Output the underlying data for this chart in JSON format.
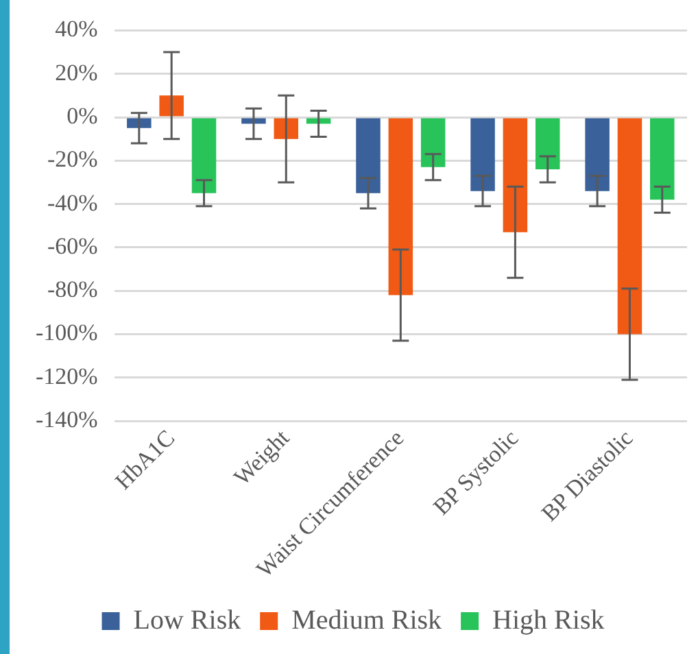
{
  "chart_data": {
    "type": "bar",
    "categories": [
      "HbA1C",
      "Weight",
      "Waist Circumference",
      "BP Systolic",
      "BP Diastolic"
    ],
    "series": [
      {
        "name": "Low Risk",
        "color": "#3a6199",
        "values": [
          -5,
          -3,
          -35,
          -34,
          -34
        ],
        "errors": [
          7,
          7,
          7,
          7,
          7
        ]
      },
      {
        "name": "Medium Risk",
        "color": "#f05a14",
        "values": [
          10,
          -10,
          -82,
          -53,
          -100
        ],
        "errors": [
          20,
          20,
          21,
          21,
          21
        ]
      },
      {
        "name": "High Risk",
        "color": "#28c45a",
        "values": [
          -35,
          -3,
          -23,
          -24,
          -38
        ],
        "errors": [
          6,
          6,
          6,
          6,
          6
        ]
      }
    ],
    "ylim": [
      -140,
      40
    ],
    "yticks": [
      {
        "value": 40,
        "label": "40%"
      },
      {
        "value": 20,
        "label": "20%"
      },
      {
        "value": 0,
        "label": "0%"
      },
      {
        "value": -20,
        "label": "-20%"
      },
      {
        "value": -40,
        "label": "-40%"
      },
      {
        "value": -60,
        "label": "-60%"
      },
      {
        "value": -80,
        "label": "-80%"
      },
      {
        "value": -100,
        "label": "-100%"
      },
      {
        "value": -120,
        "label": "-120%"
      },
      {
        "value": -140,
        "label": "-140%"
      }
    ],
    "grid": "y",
    "legend": "bottom"
  }
}
